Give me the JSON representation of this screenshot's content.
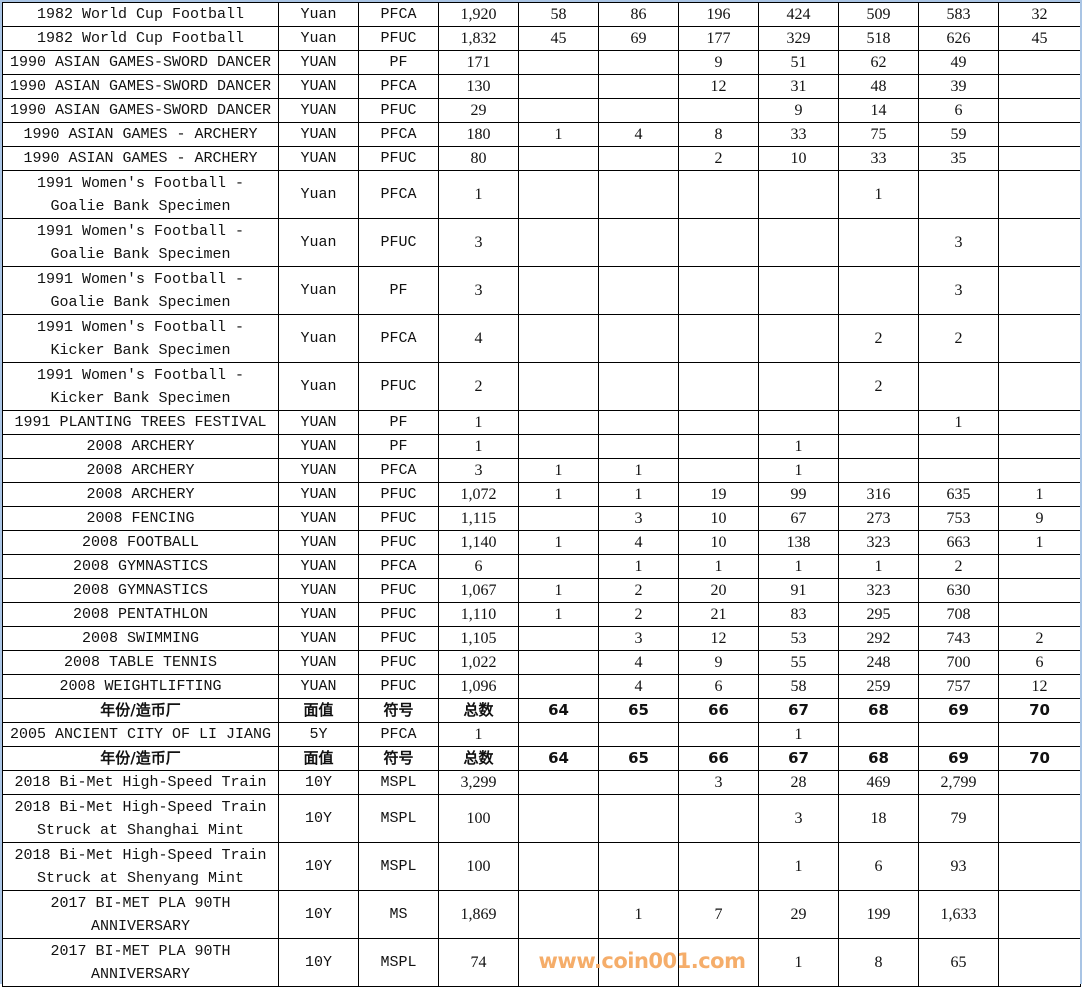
{
  "watermark": "www.coin001.com",
  "rows": [
    {
      "cells": [
        "1982 World Cup Football",
        "Yuan",
        "PFCA",
        "1,920",
        "58",
        "86",
        "196",
        "424",
        "509",
        "583",
        "32"
      ]
    },
    {
      "cells": [
        "1982 World Cup Football",
        "Yuan",
        "PFUC",
        "1,832",
        "45",
        "69",
        "177",
        "329",
        "518",
        "626",
        "45"
      ]
    },
    {
      "cells": [
        "1990 ASIAN GAMES-SWORD DANCER",
        "YUAN",
        "PF",
        "171",
        "",
        "",
        "9",
        "51",
        "62",
        "49",
        ""
      ]
    },
    {
      "cells": [
        "1990 ASIAN GAMES-SWORD DANCER",
        "YUAN",
        "PFCA",
        "130",
        "",
        "",
        "12",
        "31",
        "48",
        "39",
        ""
      ]
    },
    {
      "cells": [
        "1990 ASIAN GAMES-SWORD DANCER",
        "YUAN",
        "PFUC",
        "29",
        "",
        "",
        "",
        "9",
        "14",
        "6",
        ""
      ]
    },
    {
      "cells": [
        "1990 ASIAN GAMES - ARCHERY",
        "YUAN",
        "PFCA",
        "180",
        "1",
        "4",
        "8",
        "33",
        "75",
        "59",
        ""
      ]
    },
    {
      "cells": [
        "1990 ASIAN GAMES - ARCHERY",
        "YUAN",
        "PFUC",
        "80",
        "",
        "",
        "2",
        "10",
        "33",
        "35",
        ""
      ]
    },
    {
      "cells": [
        "1991 Women's Football -\nGoalie Bank Specimen",
        "Yuan",
        "PFCA",
        "1",
        "",
        "",
        "",
        "",
        "1",
        "",
        ""
      ]
    },
    {
      "cells": [
        "1991 Women's Football -\nGoalie Bank Specimen",
        "Yuan",
        "PFUC",
        "3",
        "",
        "",
        "",
        "",
        "",
        "3",
        ""
      ]
    },
    {
      "cells": [
        "1991 Women's Football -\nGoalie Bank Specimen",
        "Yuan",
        "PF",
        "3",
        "",
        "",
        "",
        "",
        "",
        "3",
        ""
      ]
    },
    {
      "cells": [
        "1991 Women's Football -\nKicker Bank Specimen",
        "Yuan",
        "PFCA",
        "4",
        "",
        "",
        "",
        "",
        "2",
        "2",
        ""
      ]
    },
    {
      "cells": [
        "1991 Women's Football -\nKicker Bank Specimen",
        "Yuan",
        "PFUC",
        "2",
        "",
        "",
        "",
        "",
        "2",
        "",
        ""
      ]
    },
    {
      "cells": [
        "1991 PLANTING TREES FESTIVAL",
        "YUAN",
        "PF",
        "1",
        "",
        "",
        "",
        "",
        "",
        "1",
        ""
      ]
    },
    {
      "cells": [
        "2008 ARCHERY",
        "YUAN",
        "PF",
        "1",
        "",
        "",
        "",
        "1",
        "",
        "",
        ""
      ]
    },
    {
      "cells": [
        "2008 ARCHERY",
        "YUAN",
        "PFCA",
        "3",
        "1",
        "1",
        "",
        "1",
        "",
        "",
        ""
      ]
    },
    {
      "cells": [
        "2008 ARCHERY",
        "YUAN",
        "PFUC",
        "1,072",
        "1",
        "1",
        "19",
        "99",
        "316",
        "635",
        "1"
      ]
    },
    {
      "cells": [
        "2008 FENCING",
        "YUAN",
        "PFUC",
        "1,115",
        "",
        "3",
        "10",
        "67",
        "273",
        "753",
        "9"
      ]
    },
    {
      "cells": [
        "2008 FOOTBALL",
        "YUAN",
        "PFUC",
        "1,140",
        "1",
        "4",
        "10",
        "138",
        "323",
        "663",
        "1"
      ]
    },
    {
      "cells": [
        "2008 GYMNASTICS",
        "YUAN",
        "PFCA",
        "6",
        "",
        "1",
        "1",
        "1",
        "1",
        "2",
        ""
      ]
    },
    {
      "cells": [
        "2008 GYMNASTICS",
        "YUAN",
        "PFUC",
        "1,067",
        "1",
        "2",
        "20",
        "91",
        "323",
        "630",
        ""
      ]
    },
    {
      "cells": [
        "2008 PENTATHLON",
        "YUAN",
        "PFUC",
        "1,110",
        "1",
        "2",
        "21",
        "83",
        "295",
        "708",
        ""
      ]
    },
    {
      "cells": [
        "2008 SWIMMING",
        "YUAN",
        "PFUC",
        "1,105",
        "",
        "3",
        "12",
        "53",
        "292",
        "743",
        "2"
      ]
    },
    {
      "cells": [
        "2008 TABLE TENNIS",
        "YUAN",
        "PFUC",
        "1,022",
        "",
        "4",
        "9",
        "55",
        "248",
        "700",
        "6"
      ]
    },
    {
      "cells": [
        "2008 WEIGHTLIFTING",
        "YUAN",
        "PFUC",
        "1,096",
        "",
        "4",
        "6",
        "58",
        "259",
        "757",
        "12"
      ]
    },
    {
      "header": true,
      "cells": [
        "年份/造币厂",
        "面值",
        "符号",
        "总数",
        "64",
        "65",
        "66",
        "67",
        "68",
        "69",
        "70"
      ]
    },
    {
      "cells": [
        "2005 ANCIENT CITY OF LI JIANG",
        "5Y",
        "PFCA",
        "1",
        "",
        "",
        "",
        "1",
        "",
        "",
        ""
      ]
    },
    {
      "header": true,
      "cells": [
        "年份/造币厂",
        "面值",
        "符号",
        "总数",
        "64",
        "65",
        "66",
        "67",
        "68",
        "69",
        "70"
      ]
    },
    {
      "cells": [
        "2018 Bi-Met High-Speed Train",
        "10Y",
        "MSPL",
        "3,299",
        "",
        "",
        "3",
        "28",
        "469",
        "2,799",
        ""
      ]
    },
    {
      "cells": [
        "2018 Bi-Met High-Speed Train\nStruck at Shanghai Mint",
        "10Y",
        "MSPL",
        "100",
        "",
        "",
        "",
        "3",
        "18",
        "79",
        ""
      ]
    },
    {
      "cells": [
        "2018 Bi-Met High-Speed Train\nStruck at Shenyang Mint",
        "10Y",
        "MSPL",
        "100",
        "",
        "",
        "",
        "1",
        "6",
        "93",
        ""
      ]
    },
    {
      "cells": [
        "2017 BI-MET PLA 90TH\nANNIVERSARY",
        "10Y",
        "MS",
        "1,869",
        "",
        "1",
        "7",
        "29",
        "199",
        "1,633",
        ""
      ]
    },
    {
      "cells": [
        "2017 BI-MET PLA 90TH\nANNIVERSARY",
        "10Y",
        "MSPL",
        "74",
        "",
        "",
        "",
        "1",
        "8",
        "65",
        ""
      ]
    }
  ]
}
